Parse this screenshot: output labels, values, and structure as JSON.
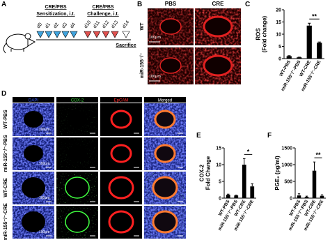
{
  "panel_labels": [
    "A",
    "B",
    "C",
    "D",
    "E",
    "F"
  ],
  "schematic": {
    "sensitization": {
      "agent": "CRE/PBS",
      "route": "Sensitization, i.t.",
      "days": [
        "d0",
        "d1",
        "d2",
        "d3",
        "d4"
      ]
    },
    "challenge": {
      "agent": "CRE/PBS",
      "route": "Challenge, i.t.",
      "days": [
        "d10",
        "d11",
        "d12",
        "d13"
      ]
    },
    "sacrifice_day": "d14",
    "sacrifice": "Sacrifice"
  },
  "histology": {
    "columns": [
      "PBS",
      "CRE"
    ],
    "rows": [
      "WT",
      "miR-155⁻/⁻"
    ],
    "scale_bar": "100μm"
  },
  "immunofluorescence": {
    "columns": [
      "DAPI",
      "COX-2",
      "EpCAM",
      "Merged"
    ],
    "rows": [
      "WT-PBS",
      "miR-155⁻/⁻-PBS",
      "WT-CRE",
      "miR-155⁻/⁻-CRE"
    ],
    "scale_bar": "100μm"
  },
  "chart_data": [
    {
      "type": "bar",
      "y_label": [
        "ROS",
        "(Fold change)"
      ],
      "categories": [
        "WT-PBS",
        "miR-155⁻/⁻-PBS",
        "WT-CRE",
        "miR-155⁻/⁻-CRE"
      ],
      "values": [
        1,
        0.5,
        13.5,
        6.5
      ],
      "errors": [
        0.2,
        0.1,
        1,
        0.3
      ],
      "color": "#000000",
      "ylim": [
        0,
        20
      ],
      "yticks": [
        0,
        5,
        10,
        15,
        20
      ],
      "significance": "**"
    },
    {
      "type": "bar",
      "y_label": [
        "COX-2",
        "Fold Change"
      ],
      "categories": [
        "WT-PBS",
        "miR-155⁻/⁻-PBS",
        "WT-CRE",
        "miR-155⁻/⁻-CRE"
      ],
      "values": [
        1,
        0.8,
        10,
        3.5
      ],
      "errors": [
        0.2,
        0.1,
        1.8,
        0.8
      ],
      "color": "#000000",
      "ylim": [
        0,
        15
      ],
      "yticks": [
        0,
        5,
        10,
        15
      ],
      "significance": "*"
    },
    {
      "type": "bar",
      "y_label": [
        "PGE₂ (pg/ml)"
      ],
      "categories": [
        "WT-PBS",
        "miR-155⁻/⁻-PBS",
        "WT-CRE",
        "miR-155⁻/⁻-CRE"
      ],
      "values": [
        80,
        40,
        820,
        70
      ],
      "errors": [
        50,
        20,
        260,
        30
      ],
      "color": "#000000",
      "ylim": [
        0,
        1500
      ],
      "yticks": [
        0,
        500,
        1000,
        1500
      ],
      "significance": "**"
    }
  ]
}
